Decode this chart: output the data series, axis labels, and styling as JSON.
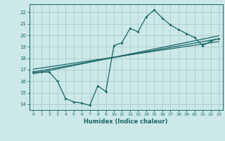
{
  "title": "",
  "xlabel": "Humidex (Indice chaleur)",
  "bg_color": "#cce8e8",
  "grid_color": "#aacccc",
  "line_color": "#1a6666",
  "xlim": [
    -0.5,
    23.5
  ],
  "ylim": [
    13.5,
    22.7
  ],
  "xticks": [
    0,
    1,
    2,
    3,
    4,
    5,
    6,
    7,
    8,
    9,
    10,
    11,
    12,
    13,
    14,
    15,
    16,
    17,
    18,
    19,
    20,
    21,
    22,
    23
  ],
  "yticks": [
    14,
    15,
    16,
    17,
    18,
    19,
    20,
    21,
    22
  ],
  "data_x": [
    0,
    1,
    2,
    3,
    4,
    5,
    6,
    7,
    8,
    9,
    10,
    11,
    12,
    13,
    14,
    15,
    16,
    17,
    18,
    19,
    20,
    21,
    22,
    23
  ],
  "data_y": [
    16.8,
    16.8,
    16.8,
    16.0,
    14.5,
    14.2,
    14.1,
    13.9,
    15.6,
    15.1,
    19.1,
    19.35,
    20.6,
    20.3,
    21.6,
    22.2,
    21.5,
    20.9,
    20.5,
    20.15,
    19.8,
    19.1,
    19.5,
    19.7
  ],
  "reg_line1_x": [
    0,
    23
  ],
  "reg_line1_y": [
    16.8,
    19.7
  ],
  "reg_line2_x": [
    0,
    23
  ],
  "reg_line2_y": [
    17.05,
    19.45
  ],
  "reg_line3_x": [
    0,
    23
  ],
  "reg_line3_y": [
    16.65,
    19.95
  ]
}
